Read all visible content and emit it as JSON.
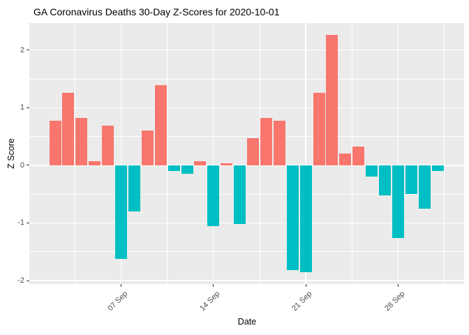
{
  "chart_data": {
    "type": "bar",
    "title": "GA Coronavirus Deaths 30-Day Z-Scores for 2020-10-01",
    "xlabel": "Date",
    "ylabel": "Z Score",
    "x": [
      "2020-09-02",
      "2020-09-03",
      "2020-09-04",
      "2020-09-05",
      "2020-09-06",
      "2020-09-07",
      "2020-09-08",
      "2020-09-09",
      "2020-09-10",
      "2020-09-11",
      "2020-09-12",
      "2020-09-13",
      "2020-09-14",
      "2020-09-15",
      "2020-09-16",
      "2020-09-17",
      "2020-09-18",
      "2020-09-19",
      "2020-09-20",
      "2020-09-21",
      "2020-09-22",
      "2020-09-23",
      "2020-09-24",
      "2020-09-25",
      "2020-09-26",
      "2020-09-27",
      "2020-09-28",
      "2020-09-29",
      "2020-09-30",
      "2020-10-01"
    ],
    "values": [
      0.78,
      1.26,
      0.82,
      0.07,
      0.69,
      -1.63,
      -0.8,
      0.61,
      1.39,
      -0.1,
      -0.15,
      0.07,
      -1.06,
      0.04,
      -1.02,
      0.47,
      0.82,
      0.78,
      -1.82,
      -1.85,
      1.26,
      2.27,
      0.21,
      0.33,
      -0.19,
      -0.52,
      -1.26,
      -0.5,
      -0.75,
      -0.1
    ],
    "x_tick_labels": [
      "07 Sep",
      "14 Sep",
      "21 Sep",
      "28 Sep"
    ],
    "x_tick_indices": [
      5,
      12,
      19,
      26
    ],
    "x_minor_grid_indices": [
      1.5,
      8.5,
      15.5,
      22.5,
      29.5
    ],
    "y_tick_labels": [
      "-2",
      "-1",
      "0",
      "1",
      "2"
    ],
    "y_major_ticks": [
      -2,
      -1,
      0,
      1,
      2
    ],
    "y_minor_ticks": [
      -1.5,
      -0.5,
      0.5,
      1.5
    ],
    "ylim": [
      -2.06,
      2.47
    ],
    "grid": "white major and minor gridlines on gray panel",
    "legend_position": "none",
    "colors": {
      "positive_bar": "#F8766D",
      "negative_bar": "#00BFC4",
      "panel_background": "#EBEBEB",
      "gridline": "#FFFFFF",
      "axis_text": "#4D4D4D",
      "tick_mark": "#333333",
      "title_text": "#000000"
    }
  }
}
